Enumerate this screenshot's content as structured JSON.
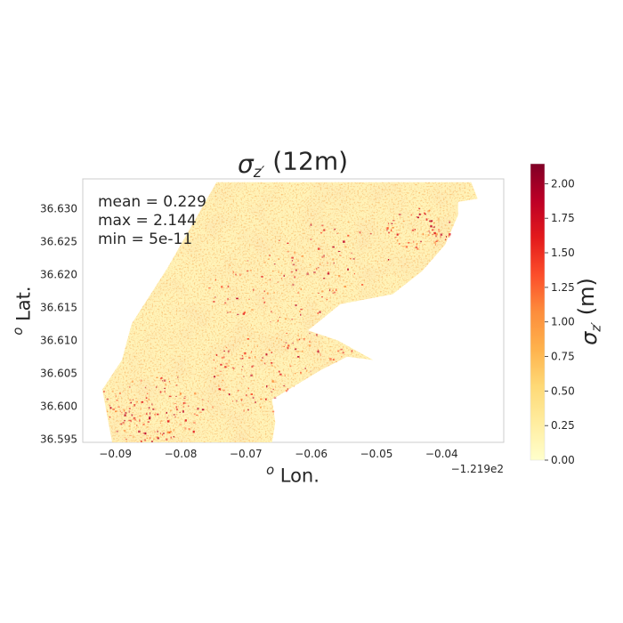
{
  "chart_data": {
    "type": "heatmap",
    "title": {
      "sigma": "σ",
      "sub": "z′",
      "rest": " (12m)"
    },
    "xlabel": {
      "sup": "o",
      "text": " Lon."
    },
    "ylabel": {
      "sup": "o",
      "text": " Lat."
    },
    "x_offset_label": "−1.219e2",
    "xlim": [
      -0.095,
      -0.0305
    ],
    "ylim": [
      36.5945,
      36.6345
    ],
    "x_ticks": [
      -0.09,
      -0.08,
      -0.07,
      -0.06,
      -0.05,
      -0.04
    ],
    "x_tick_labels": [
      "−0.09",
      "−0.08",
      "−0.07",
      "−0.06",
      "−0.05",
      "−0.04"
    ],
    "y_ticks": [
      36.595,
      36.6,
      36.605,
      36.61,
      36.615,
      36.62,
      36.625,
      36.63
    ],
    "y_tick_labels": [
      "36.595",
      "36.600",
      "36.605",
      "36.610",
      "36.615",
      "36.620",
      "36.625",
      "36.630"
    ],
    "stats": [
      "mean = 0.229",
      "max = 2.144",
      "min = 5e-11"
    ],
    "grid": false,
    "colorbar": {
      "colormap": "YlOrRd",
      "range": [
        0,
        2.144
      ],
      "ticks": [
        0,
        0.25,
        0.5,
        0.75,
        1.0,
        1.25,
        1.5,
        1.75,
        2.0
      ],
      "tick_labels": [
        "0.00",
        "0.25",
        "0.50",
        "0.75",
        "1.00",
        "1.25",
        "1.50",
        "1.75",
        "2.00"
      ],
      "label": {
        "sigma": "σ",
        "sub": "z′",
        "rest": " (m)"
      }
    },
    "data_footprint": [
      [
        -0.0905,
        36.5945
      ],
      [
        -0.082,
        36.5945
      ],
      [
        -0.066,
        36.5945
      ],
      [
        -0.0655,
        36.5975
      ],
      [
        -0.066,
        36.601
      ],
      [
        -0.0585,
        36.6055
      ],
      [
        -0.0545,
        36.6075
      ],
      [
        -0.0505,
        36.607
      ],
      [
        -0.056,
        36.61
      ],
      [
        -0.0605,
        36.6115
      ],
      [
        -0.0555,
        36.6155
      ],
      [
        -0.0475,
        36.617
      ],
      [
        -0.043,
        36.6205
      ],
      [
        -0.0395,
        36.6245
      ],
      [
        -0.0375,
        36.629
      ],
      [
        -0.0375,
        36.631
      ],
      [
        -0.0345,
        36.6315
      ],
      [
        -0.0355,
        36.634
      ],
      [
        -0.0455,
        36.634
      ],
      [
        -0.0745,
        36.634
      ],
      [
        -0.082,
        36.621
      ],
      [
        -0.0875,
        36.6125
      ],
      [
        -0.089,
        36.607
      ],
      [
        -0.092,
        36.6025
      ]
    ]
  }
}
